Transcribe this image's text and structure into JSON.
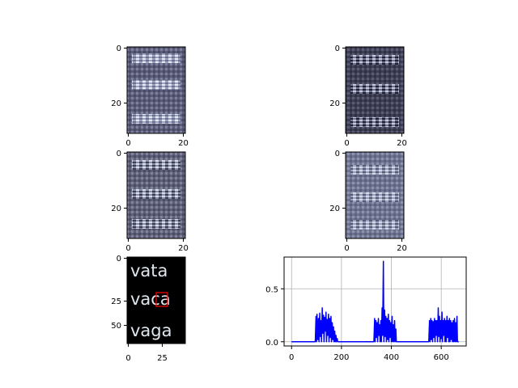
{
  "colors": {
    "line": "#0000ff",
    "highlight_box": "#ff0000",
    "grid": "#b0b0b0"
  },
  "panels": {
    "p1": {
      "xticks": [
        "0",
        "20"
      ],
      "yticks": [
        "0",
        "20"
      ]
    },
    "p2": {
      "xticks": [
        "0",
        "20"
      ],
      "yticks": [
        "0",
        "20"
      ]
    },
    "p3": {
      "xticks": [
        "0",
        "20"
      ],
      "yticks": [
        "0",
        "20"
      ]
    },
    "p4": {
      "xticks": [
        "0",
        "20"
      ],
      "yticks": [
        "0",
        "20"
      ]
    },
    "p5": {
      "xticks": [
        "0",
        "25"
      ],
      "yticks": [
        "0",
        "25",
        "50"
      ],
      "words": [
        "vata",
        "vaca",
        "vaga"
      ]
    }
  },
  "chart_data": {
    "type": "line",
    "grid": true,
    "xlim": [
      -30,
      700
    ],
    "ylim": [
      -0.04,
      0.8
    ],
    "xticks": [
      "0",
      "200",
      "400",
      "600"
    ],
    "yticks": [
      "0.0",
      "0.5"
    ],
    "x": [
      0,
      95,
      98,
      100,
      102,
      105,
      108,
      110,
      113,
      115,
      117,
      120,
      123,
      125,
      128,
      130,
      133,
      135,
      138,
      140,
      143,
      145,
      148,
      150,
      153,
      155,
      158,
      160,
      163,
      165,
      168,
      170,
      173,
      175,
      178,
      180,
      183,
      185,
      190,
      330,
      333,
      335,
      338,
      340,
      343,
      345,
      348,
      350,
      353,
      355,
      358,
      360,
      363,
      365,
      368,
      370,
      373,
      375,
      378,
      380,
      383,
      385,
      388,
      390,
      393,
      395,
      398,
      400,
      403,
      405,
      408,
      410,
      413,
      415,
      418,
      420,
      550,
      553,
      555,
      558,
      560,
      563,
      565,
      568,
      570,
      573,
      575,
      578,
      580,
      583,
      585,
      588,
      590,
      593,
      595,
      598,
      600,
      603,
      605,
      608,
      610,
      613,
      615,
      618,
      620,
      623,
      625,
      628,
      630,
      633,
      635,
      638,
      640,
      643,
      645,
      648,
      650,
      653,
      655,
      658,
      660,
      663,
      665,
      670
    ],
    "y": [
      0.0,
      0.0,
      0.24,
      0.0,
      0.26,
      0.02,
      0.22,
      0.0,
      0.27,
      0.05,
      0.2,
      0.0,
      0.32,
      0.08,
      0.25,
      0.0,
      0.23,
      0.1,
      0.28,
      0.0,
      0.21,
      0.06,
      0.26,
      0.0,
      0.22,
      0.04,
      0.24,
      0.0,
      0.18,
      0.02,
      0.14,
      0.0,
      0.1,
      0.0,
      0.06,
      0.0,
      0.03,
      0.0,
      0.0,
      0.0,
      0.22,
      0.0,
      0.2,
      0.04,
      0.18,
      0.0,
      0.22,
      0.06,
      0.16,
      0.0,
      0.2,
      0.0,
      0.32,
      0.06,
      0.76,
      0.0,
      0.3,
      0.05,
      0.24,
      0.0,
      0.22,
      0.02,
      0.26,
      0.0,
      0.2,
      0.04,
      0.18,
      0.0,
      0.24,
      0.0,
      0.16,
      0.0,
      0.2,
      0.0,
      0.12,
      0.0,
      0.0,
      0.2,
      0.0,
      0.22,
      0.02,
      0.2,
      0.0,
      0.19,
      0.04,
      0.22,
      0.0,
      0.2,
      0.06,
      0.2,
      0.0,
      0.32,
      0.05,
      0.24,
      0.0,
      0.2,
      0.03,
      0.28,
      0.0,
      0.2,
      0.06,
      0.22,
      0.0,
      0.2,
      0.0,
      0.24,
      0.04,
      0.2,
      0.0,
      0.22,
      0.0,
      0.2,
      0.02,
      0.18,
      0.0,
      0.2,
      0.0,
      0.22,
      0.0,
      0.18,
      0.0,
      0.24,
      0.0,
      0.0
    ]
  }
}
